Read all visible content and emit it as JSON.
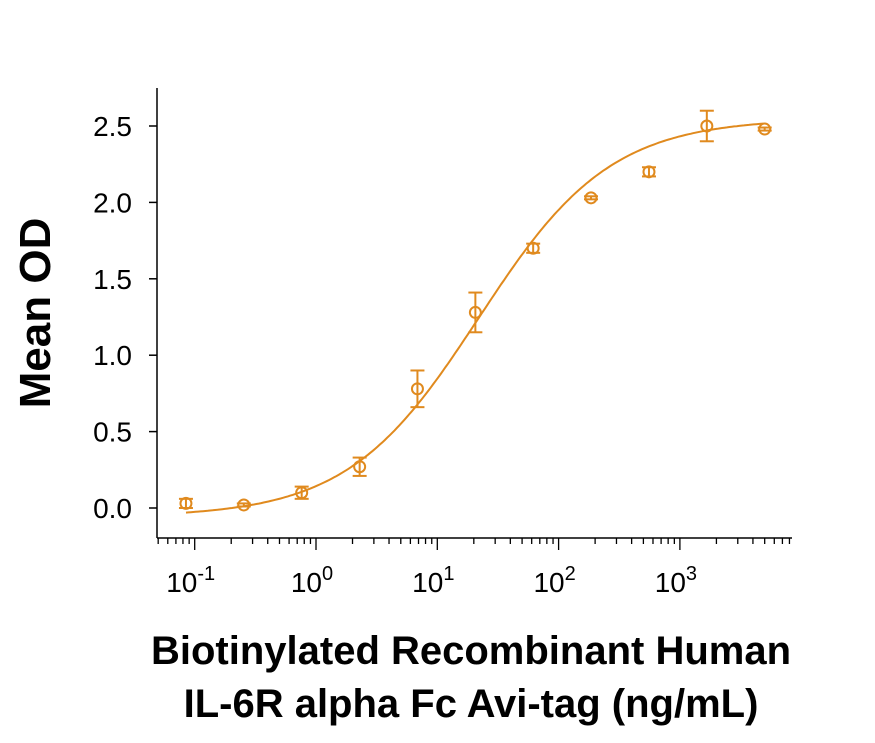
{
  "chart_data": {
    "type": "scatter",
    "title": "",
    "xlabel_line1": "Biotinylated Recombinant Human",
    "xlabel_line2": "IL-6R alpha Fc Avi-tag (ng/mL)",
    "ylabel": "Mean OD",
    "xscale": "log",
    "xlim": [
      0.05,
      8500
    ],
    "ylim": [
      -0.08,
      2.75
    ],
    "x_ticks": [
      {
        "value": 0.1,
        "base": "10",
        "exp": "-1"
      },
      {
        "value": 1,
        "base": "10",
        "exp": "0"
      },
      {
        "value": 10,
        "base": "10",
        "exp": "1"
      },
      {
        "value": 100,
        "base": "10",
        "exp": "2"
      },
      {
        "value": 1000,
        "base": "10",
        "exp": "3"
      }
    ],
    "y_ticks": [
      "0.0",
      "0.5",
      "1.0",
      "1.5",
      "2.0",
      "2.5"
    ],
    "color": "#E08A1E",
    "series": [
      {
        "name": "Mean OD",
        "x": [
          0.0847,
          0.254,
          0.762,
          2.29,
          6.86,
          20.6,
          61.7,
          185,
          556,
          1667,
          5000
        ],
        "y": [
          0.03,
          0.02,
          0.1,
          0.27,
          0.78,
          1.28,
          1.7,
          2.03,
          2.2,
          2.5,
          2.48
        ],
        "err": [
          0.03,
          0.01,
          0.04,
          0.06,
          0.12,
          0.13,
          0.03,
          0.01,
          0.03,
          0.1,
          0.01
        ]
      }
    ],
    "fit": {
      "model": "4PL",
      "bottom": -0.06,
      "top": 2.55,
      "ec50": 22,
      "hill": 0.8
    },
    "grid": false,
    "legend": "none"
  }
}
